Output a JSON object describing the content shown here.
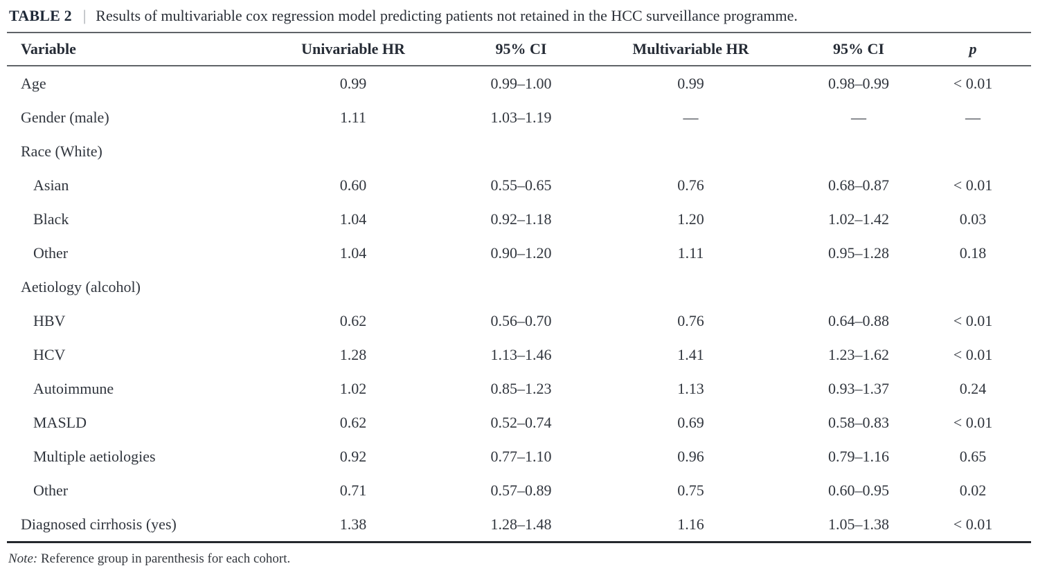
{
  "table": {
    "label": "TABLE 2",
    "separator": "|",
    "caption": "Results of multivariable cox regression model predicting patients not retained in the HCC surveillance programme.",
    "columns": [
      "Variable",
      "Univariable HR",
      "95% CI",
      "Multivariable HR",
      "95% CI",
      "p"
    ],
    "rows": [
      {
        "variable": "Age",
        "indent": false,
        "group": false,
        "uni_hr": "0.99",
        "uni_ci": "0.99–1.00",
        "multi_hr": "0.99",
        "multi_ci": "0.98–0.99",
        "p": "< 0.01"
      },
      {
        "variable": "Gender (male)",
        "indent": false,
        "group": false,
        "uni_hr": "1.11",
        "uni_ci": "1.03–1.19",
        "multi_hr": "—",
        "multi_ci": "—",
        "p": "—"
      },
      {
        "variable": "Race (White)",
        "indent": false,
        "group": true,
        "uni_hr": "",
        "uni_ci": "",
        "multi_hr": "",
        "multi_ci": "",
        "p": ""
      },
      {
        "variable": "Asian",
        "indent": true,
        "group": false,
        "uni_hr": "0.60",
        "uni_ci": "0.55–0.65",
        "multi_hr": "0.76",
        "multi_ci": "0.68–0.87",
        "p": "< 0.01"
      },
      {
        "variable": "Black",
        "indent": true,
        "group": false,
        "uni_hr": "1.04",
        "uni_ci": "0.92–1.18",
        "multi_hr": "1.20",
        "multi_ci": "1.02–1.42",
        "p": "0.03"
      },
      {
        "variable": "Other",
        "indent": true,
        "group": false,
        "uni_hr": "1.04",
        "uni_ci": "0.90–1.20",
        "multi_hr": "1.11",
        "multi_ci": "0.95–1.28",
        "p": "0.18"
      },
      {
        "variable": "Aetiology (alcohol)",
        "indent": false,
        "group": true,
        "uni_hr": "",
        "uni_ci": "",
        "multi_hr": "",
        "multi_ci": "",
        "p": ""
      },
      {
        "variable": "HBV",
        "indent": true,
        "group": false,
        "uni_hr": "0.62",
        "uni_ci": "0.56–0.70",
        "multi_hr": "0.76",
        "multi_ci": "0.64–0.88",
        "p": "< 0.01"
      },
      {
        "variable": "HCV",
        "indent": true,
        "group": false,
        "uni_hr": "1.28",
        "uni_ci": "1.13–1.46",
        "multi_hr": "1.41",
        "multi_ci": "1.23–1.62",
        "p": "< 0.01"
      },
      {
        "variable": "Autoimmune",
        "indent": true,
        "group": false,
        "uni_hr": "1.02",
        "uni_ci": "0.85–1.23",
        "multi_hr": "1.13",
        "multi_ci": "0.93–1.37",
        "p": "0.24"
      },
      {
        "variable": "MASLD",
        "indent": true,
        "group": false,
        "uni_hr": "0.62",
        "uni_ci": "0.52–0.74",
        "multi_hr": "0.69",
        "multi_ci": "0.58–0.83",
        "p": "< 0.01"
      },
      {
        "variable": "Multiple aetiologies",
        "indent": true,
        "group": false,
        "uni_hr": "0.92",
        "uni_ci": "0.77–1.10",
        "multi_hr": "0.96",
        "multi_ci": "0.79–1.16",
        "p": "0.65"
      },
      {
        "variable": "Other",
        "indent": true,
        "group": false,
        "uni_hr": "0.71",
        "uni_ci": "0.57–0.89",
        "multi_hr": "0.75",
        "multi_ci": "0.60–0.95",
        "p": "0.02"
      },
      {
        "variable": "Diagnosed cirrhosis (yes)",
        "indent": false,
        "group": false,
        "uni_hr": "1.38",
        "uni_ci": "1.28–1.48",
        "multi_hr": "1.16",
        "multi_ci": "1.05–1.38",
        "p": "< 0.01"
      }
    ],
    "note_label": "Note:",
    "note_text": "Reference group in parenthesis for each cohort."
  },
  "colors": {
    "rule_gray": "#5f6367",
    "rule_dark": "#24282d",
    "heading_text": "#252b35",
    "body_text": "#30353d"
  }
}
